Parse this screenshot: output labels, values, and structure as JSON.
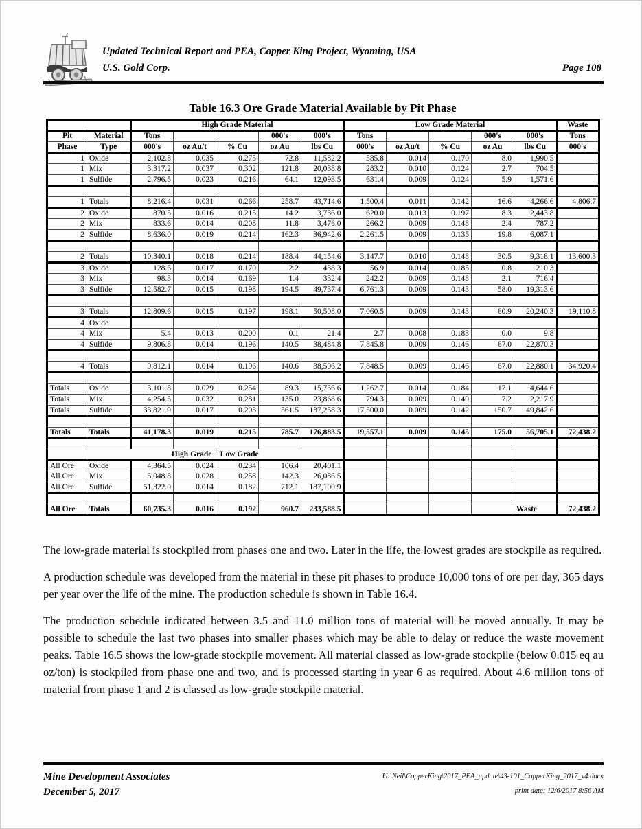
{
  "header": {
    "report_title": "Updated Technical Report and PEA, Copper King Project, Wyoming, USA",
    "company": "U.S. Gold Corp.",
    "page_number": "Page 108",
    "logo": "mine-cart-sketch"
  },
  "table": {
    "caption": "Table 16.3 Ore Grade Material Available by Pit Phase",
    "groups": {
      "high": "High Grade Material",
      "low": "Low Grade Material",
      "waste": "Waste"
    },
    "subhead1": [
      "Pit",
      "Material",
      "Tons",
      "",
      "",
      "000's",
      "000's",
      "Tons",
      "",
      "",
      "000's",
      "000's",
      "Tons"
    ],
    "subhead2": [
      "Phase",
      "Type",
      "000's",
      "oz Au/t",
      "% Cu",
      "oz Au",
      "lbs Cu",
      "000's",
      "oz Au/t",
      "% Cu",
      "oz Au",
      "lbs Cu",
      "000's"
    ],
    "mid_header": "High Grade + Low Grade",
    "rows": [
      {
        "cells": [
          "1",
          "Oxide",
          "2,102.8",
          "0.035",
          "0.275",
          "72.8",
          "11,582.2",
          "585.8",
          "0.014",
          "0.170",
          "8.0",
          "1,990.5",
          ""
        ]
      },
      {
        "cells": [
          "1",
          "Mix",
          "3,317.2",
          "0.037",
          "0.302",
          "121.8",
          "20,038.8",
          "283.2",
          "0.010",
          "0.124",
          "2.7",
          "704.5",
          ""
        ]
      },
      {
        "cells": [
          "1",
          "Sulfide",
          "2,796.5",
          "0.023",
          "0.216",
          "64.1",
          "12,093.5",
          "631.4",
          "0.009",
          "0.124",
          "5.9",
          "1,571.6",
          ""
        ],
        "thick": true
      },
      {
        "blank": true
      },
      {
        "cells": [
          "1",
          "Totals",
          "8,216.4",
          "0.031",
          "0.266",
          "258.7",
          "43,714.6",
          "1,500.4",
          "0.011",
          "0.142",
          "16.6",
          "4,266.6",
          "4,806.7"
        ],
        "thick": true
      },
      {
        "cells": [
          "2",
          "Oxide",
          "870.5",
          "0.016",
          "0.215",
          "14.2",
          "3,736.0",
          "620.0",
          "0.013",
          "0.197",
          "8.3",
          "2,443.8",
          ""
        ]
      },
      {
        "cells": [
          "2",
          "Mix",
          "833.6",
          "0.014",
          "0.208",
          "11.8",
          "3,476.0",
          "266.2",
          "0.009",
          "0.148",
          "2.4",
          "787.2",
          ""
        ]
      },
      {
        "cells": [
          "2",
          "Sulfide",
          "8,636.0",
          "0.019",
          "0.214",
          "162.3",
          "36,942.6",
          "2,261.5",
          "0.009",
          "0.135",
          "19.8",
          "6,087.1",
          ""
        ],
        "thick": true
      },
      {
        "blank": true
      },
      {
        "cells": [
          "2",
          "Totals",
          "10,340.1",
          "0.018",
          "0.214",
          "188.4",
          "44,154.6",
          "3,147.7",
          "0.010",
          "0.148",
          "30.5",
          "9,318.1",
          "13,600.3"
        ],
        "thick": true
      },
      {
        "cells": [
          "3",
          "Oxide",
          "128.6",
          "0.017",
          "0.170",
          "2.2",
          "438.3",
          "56.9",
          "0.014",
          "0.185",
          "0.8",
          "210.3",
          ""
        ]
      },
      {
        "cells": [
          "3",
          "Mix",
          "98.3",
          "0.014",
          "0.169",
          "1.4",
          "332.4",
          "242.2",
          "0.009",
          "0.148",
          "2.1",
          "716.4",
          ""
        ]
      },
      {
        "cells": [
          "3",
          "Sulfide",
          "12,582.7",
          "0.015",
          "0.198",
          "194.5",
          "49,737.4",
          "6,761.3",
          "0.009",
          "0.143",
          "58.0",
          "19,313.6",
          ""
        ],
        "thick": true
      },
      {
        "blank": true
      },
      {
        "cells": [
          "3",
          "Totals",
          "12,809.6",
          "0.015",
          "0.197",
          "198.1",
          "50,508.0",
          "7,060.5",
          "0.009",
          "0.143",
          "60.9",
          "20,240.3",
          "19,110.8"
        ],
        "thick": true
      },
      {
        "cells": [
          "4",
          "Oxide",
          "",
          "",
          "",
          "",
          "",
          "",
          "",
          "",
          "",
          "",
          ""
        ]
      },
      {
        "cells": [
          "4",
          "Mix",
          "5.4",
          "0.013",
          "0.200",
          "0.1",
          "21.4",
          "2.7",
          "0.008",
          "0.183",
          "0.0",
          "9.8",
          ""
        ]
      },
      {
        "cells": [
          "4",
          "Sulfide",
          "9,806.8",
          "0.014",
          "0.196",
          "140.5",
          "38,484.8",
          "7,845.8",
          "0.009",
          "0.146",
          "67.0",
          "22,870.3",
          ""
        ],
        "thick": true
      },
      {
        "blank": true
      },
      {
        "cells": [
          "4",
          "Totals",
          "9,812.1",
          "0.014",
          "0.196",
          "140.6",
          "38,506.2",
          "7,848.5",
          "0.009",
          "0.146",
          "67.0",
          "22,880.1",
          "34,920.4"
        ],
        "thick": true
      },
      {
        "blank": true
      },
      {
        "cells": [
          "Totals",
          "Oxide",
          "3,101.8",
          "0.029",
          "0.254",
          "89.3",
          "15,756.6",
          "1,262.7",
          "0.014",
          "0.184",
          "17.1",
          "4,644.6",
          ""
        ]
      },
      {
        "cells": [
          "Totals",
          "Mix",
          "4,254.5",
          "0.032",
          "0.281",
          "135.0",
          "23,868.6",
          "794.3",
          "0.009",
          "0.140",
          "7.2",
          "2,217.9",
          ""
        ]
      },
      {
        "cells": [
          "Totals",
          "Sulfide",
          "33,821.9",
          "0.017",
          "0.203",
          "561.5",
          "137,258.3",
          "17,500.0",
          "0.009",
          "0.142",
          "150.7",
          "49,842.6",
          ""
        ],
        "thick": true
      },
      {
        "blank": true
      },
      {
        "cells": [
          "Totals",
          "Totals",
          "41,178.3",
          "0.019",
          "0.215",
          "785.7",
          "176,883.5",
          "19,557.1",
          "0.009",
          "0.145",
          "175.0",
          "56,705.1",
          "72,438.2"
        ],
        "bold": true,
        "thick": true
      },
      {
        "blank": true
      },
      {
        "type": "midheader",
        "thick": true
      },
      {
        "cells": [
          "All Ore",
          "Oxide",
          "4,364.5",
          "0.024",
          "0.234",
          "106.4",
          "20,401.1",
          "",
          "",
          "",
          "",
          "",
          ""
        ]
      },
      {
        "cells": [
          "All Ore",
          "Mix",
          "5,048.8",
          "0.028",
          "0.258",
          "142.3",
          "26,086.5",
          "",
          "",
          "",
          "",
          "",
          ""
        ]
      },
      {
        "cells": [
          "All Ore",
          "Sulfide",
          "51,322.0",
          "0.014",
          "0.182",
          "712.1",
          "187,100.9",
          "",
          "",
          "",
          "",
          "",
          ""
        ],
        "thick": true
      },
      {
        "blank": true
      },
      {
        "cells": [
          "All Ore",
          "Totals",
          "60,735.3",
          "0.016",
          "0.192",
          "960.7",
          "233,588.5",
          "",
          "",
          "",
          "",
          "Waste",
          "72,438.2"
        ],
        "bold": true,
        "thick": true
      }
    ]
  },
  "paragraphs": [
    "The low-grade material is stockpiled from phases one and two.  Later in the life, the lowest grades are stockpile as required.",
    "A production schedule was developed from the material in these pit phases to produce 10,000 tons of ore per day, 365 days per year over the life of the mine.  The production schedule is shown in Table 16.4.",
    "The production schedule indicated between 3.5 and 11.0 million tons of material will be moved annually. It may be possible to schedule the last two phases into smaller phases which may be able to delay or reduce the waste movement peaks.  Table 16.5 shows the low-grade stockpile movement.  All material classed as low-grade stockpile (below 0.015 eq au oz/ton) is stockpiled from phase one and two, and is processed starting in year 6 as required.  About 4.6 million tons of material from phase 1 and 2 is classed as low-grade stockpile material."
  ],
  "footer": {
    "company": "Mine Development Associates",
    "date": "December 5, 2017",
    "file_path": "U:\\Neil\\CopperKing\\2017_PEA_update\\43-101_CopperKing_2017_v4.docx",
    "print_date": "print date: 12/6/2017 8:56 AM"
  }
}
